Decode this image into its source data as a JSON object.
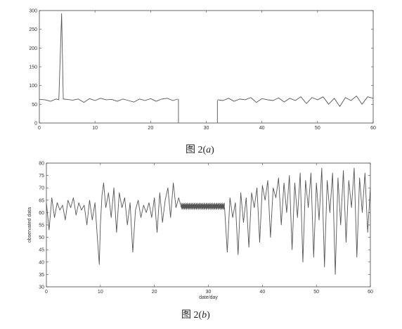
{
  "chart_data": [
    {
      "type": "line",
      "caption_prefix": "图 2(",
      "caption_var": "a",
      "caption_suffix": ")",
      "xlabel": "",
      "ylabel": "",
      "xlim": [
        0,
        60
      ],
      "ylim": [
        0,
        300
      ],
      "xticks": [
        0,
        10,
        20,
        30,
        40,
        50,
        60
      ],
      "yticks": [
        0,
        50,
        100,
        150,
        200,
        250,
        300
      ],
      "grid": false,
      "line_color": "#555555",
      "series": [
        {
          "segments": [
            {
              "x": [
                0,
                1,
                2,
                3,
                3.5,
                3.8,
                4,
                4.3,
                5,
                6,
                7,
                8,
                9,
                10,
                11,
                12,
                13,
                14,
                15,
                16,
                17,
                18,
                19,
                20,
                21,
                22,
                23,
                24,
                24.9
              ],
              "y": [
                63,
                62,
                58,
                64,
                62,
                200,
                292,
                64,
                63,
                61,
                64,
                55,
                65,
                60,
                66,
                62,
                63,
                58,
                64,
                60,
                56,
                64,
                60,
                65,
                58,
                64,
                66,
                60,
                64
              ]
            },
            {
              "x": [
                25,
                25
              ],
              "y": [
                64,
                0
              ]
            },
            {
              "x": [
                32,
                32
              ],
              "y": [
                0,
                60
              ]
            },
            {
              "x": [
                32,
                33,
                34,
                35,
                36,
                37,
                38,
                39,
                40,
                41,
                42,
                43,
                44,
                45,
                46,
                47,
                48,
                49,
                50,
                51,
                52,
                53,
                54,
                55,
                56,
                57,
                58,
                59,
                60
              ],
              "y": [
                62,
                60,
                66,
                58,
                64,
                62,
                68,
                55,
                65,
                62,
                60,
                67,
                56,
                66,
                60,
                70,
                52,
                68,
                62,
                70,
                50,
                66,
                44,
                68,
                60,
                72,
                50,
                70,
                66
              ]
            }
          ]
        }
      ]
    },
    {
      "type": "line",
      "caption_prefix": "图 2(",
      "caption_var": "b",
      "caption_suffix": ")",
      "xlabel": "date/day",
      "ylabel": "observated data",
      "xlim": [
        0,
        60
      ],
      "ylim": [
        30,
        80
      ],
      "xticks": [
        0,
        10,
        20,
        30,
        40,
        50,
        60
      ],
      "yticks": [
        30,
        35,
        40,
        45,
        50,
        55,
        60,
        65,
        70,
        75,
        80
      ],
      "grid": false,
      "line_color": "#555555",
      "band": {
        "x": [
          25,
          33
        ],
        "ymin": 61,
        "ymax": 64
      },
      "series": [
        {
          "segments": [
            {
              "x": [
                0,
                0.5,
                1,
                1.5,
                2,
                2.5,
                3,
                3.5,
                4,
                4.5,
                5,
                5.5,
                6,
                6.5,
                7,
                7.5,
                8,
                8.5,
                9,
                9.5,
                9.8,
                10,
                10.3,
                10.6,
                11,
                11.5,
                12,
                12.5,
                13,
                13.5,
                14,
                14.5,
                15,
                15.5,
                16,
                16.5,
                17,
                17.5,
                18,
                18.5,
                19,
                19.5,
                20,
                20.5,
                21,
                21.5,
                22,
                22.5,
                23,
                23.5,
                24,
                24.5,
                25
              ],
              "y": [
                64,
                53,
                66,
                58,
                64,
                61,
                63,
                57,
                65,
                62,
                66,
                59,
                64,
                61,
                63,
                55,
                65,
                57,
                64,
                48,
                39,
                55,
                67,
                72,
                62,
                68,
                58,
                70,
                52,
                68,
                62,
                66,
                55,
                64,
                44,
                61,
                65,
                58,
                63,
                60,
                64,
                58,
                66,
                52,
                68,
                56,
                65,
                70,
                58,
                72,
                62,
                66,
                62
              ]
            },
            {
              "x": [
                33,
                33.5,
                34,
                34.5,
                35,
                35.5,
                36,
                36.5,
                37,
                37.5,
                38,
                38.5,
                39,
                39.5,
                40,
                40.5,
                41,
                41.5,
                42,
                42.5,
                43,
                43.5,
                44,
                44.5,
                45,
                45.5,
                46,
                46.5,
                47,
                47.5,
                48,
                48.5,
                49,
                49.5,
                50,
                50.5,
                51,
                51.5,
                52,
                52.5,
                53,
                53.5,
                54,
                54.5,
                55,
                55.5,
                56,
                56.5,
                57,
                57.5,
                58,
                58.5,
                59,
                59.5,
                60
              ],
              "y": [
                62,
                44,
                66,
                58,
                64,
                43,
                68,
                56,
                66,
                46,
                68,
                62,
                70,
                48,
                71,
                65,
                73,
                50,
                70,
                66,
                74,
                55,
                72,
                60,
                75,
                45,
                72,
                58,
                76,
                40,
                73,
                62,
                76,
                42,
                72,
                57,
                78,
                38,
                73,
                60,
                76,
                35,
                74,
                55,
                77,
                48,
                73,
                62,
                78,
                42,
                74,
                60,
                76,
                52,
                70
              ]
            }
          ]
        }
      ]
    }
  ]
}
